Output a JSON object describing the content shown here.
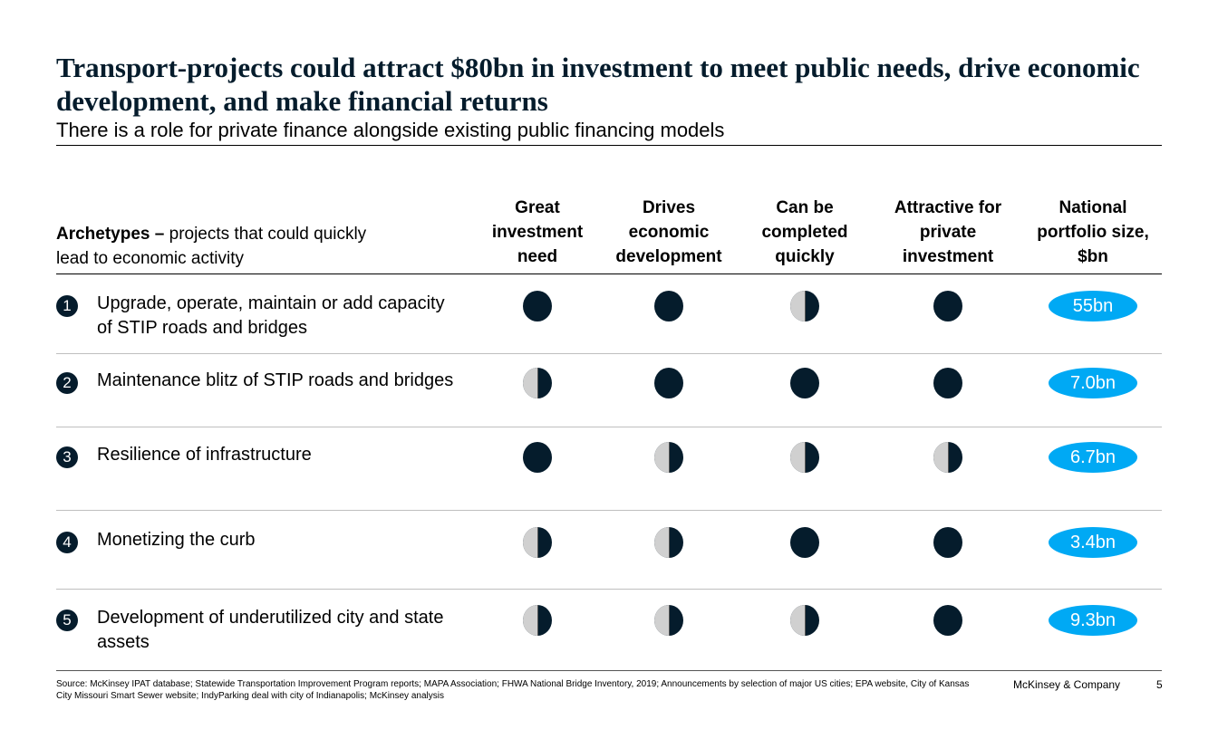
{
  "title": "Transport-projects could attract $80bn in investment to meet public needs, drive economic development, and make financial returns",
  "subtitle": "There is a role for private finance alongside existing public financing models",
  "table": {
    "archetype_header_bold": "Archetypes –",
    "archetype_header_rest": " projects that could quickly lead to economic activity",
    "columns": [
      "Great investment need",
      "Drives economic development",
      "Can be completed quickly",
      "Attractive for private investment",
      "National portfolio size, $bn"
    ],
    "rows": [
      {
        "num": "1",
        "label": "Upgrade, operate, maintain or add capacity of STIP roads and bridges",
        "ratings": [
          1,
          1,
          0.5,
          1
        ],
        "size": "55bn"
      },
      {
        "num": "2",
        "label": "Maintenance blitz of STIP roads and bridges",
        "ratings": [
          0.5,
          1,
          1,
          1
        ],
        "size": "7.0bn"
      },
      {
        "num": "3",
        "label": "Resilience of infrastructure",
        "ratings": [
          1,
          0.5,
          0.5,
          0.5
        ],
        "size": "6.7bn"
      },
      {
        "num": "4",
        "label": "Monetizing the curb",
        "ratings": [
          0.5,
          0.5,
          1,
          1
        ],
        "size": "3.4bn"
      },
      {
        "num": "5",
        "label": "Development of underutilized city and state assets",
        "ratings": [
          0.5,
          0.5,
          0.5,
          1
        ],
        "size": "9.3bn"
      }
    ]
  },
  "colors": {
    "dark": "#051c2c",
    "accent": "#00a9f4",
    "half": "#d0d0d0"
  },
  "footer": {
    "source": "Source: McKinsey IPAT database; Statewide Transportation Improvement Program reports; MAPA Association; FHWA National Bridge Inventory, 2019; Announcements by selection of major US cities; EPA website, City of Kansas City Missouri Smart Sewer website; IndyParking deal with city of Indianapolis; McKinsey analysis",
    "brand": "McKinsey & Company",
    "page": "5"
  }
}
